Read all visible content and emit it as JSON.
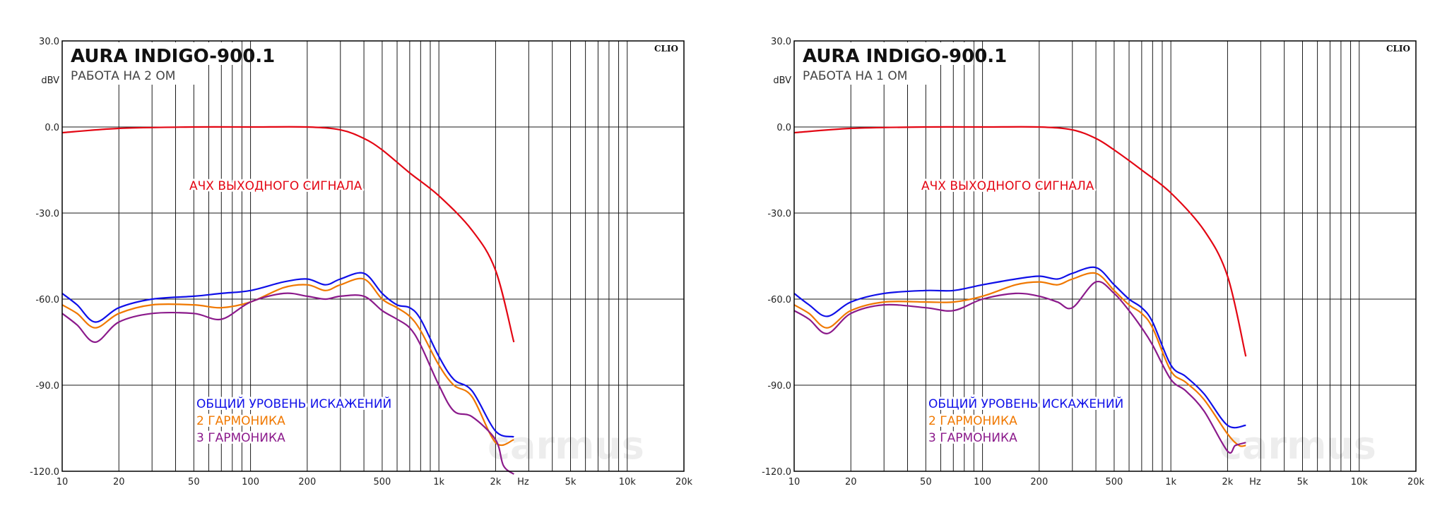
{
  "chart_data": [
    {
      "type": "line",
      "title": "AURA INDIGO-900.1",
      "subtitle": "РАБОТА НА 2 ОМ",
      "brand": "CLIO",
      "watermark": "carmus",
      "ylabel": "dBV",
      "xlabel": "Hz",
      "x_scale": "log",
      "xlim": [
        10,
        20000
      ],
      "ylim": [
        -120,
        30
      ],
      "x_ticks": [
        10,
        20,
        50,
        100,
        200,
        500,
        1000,
        2000,
        5000,
        10000,
        20000
      ],
      "x_tick_labels": [
        "10",
        "20",
        "50",
        "100",
        "200",
        "500",
        "1k",
        "2k",
        "5k",
        "10k",
        "20k"
      ],
      "y_ticks": [
        30,
        0,
        -30,
        -60,
        -90,
        -120
      ],
      "y_tick_labels": [
        "30.0",
        "0.0",
        "-30.0",
        "-60.0",
        "-90.0",
        "-120.0"
      ],
      "grid": true,
      "annotations": [
        {
          "text": "АЧХ ВЫХОДНОГО СИГНАЛА",
          "color": "#e30613"
        },
        {
          "text": "ОБЩИЙ УРОВЕНЬ ИСКАЖЕНИЙ",
          "color": "#1010e8"
        },
        {
          "text": "2 ГАРМОНИКА",
          "color": "#f07800"
        },
        {
          "text": "3 ГАРМОНИКА",
          "color": "#8b1a8b"
        }
      ],
      "series": [
        {
          "color": "#e30613",
          "x": [
            10,
            20,
            50,
            100,
            200,
            300,
            400,
            500,
            700,
            1000,
            1500,
            2000,
            2500
          ],
          "y": [
            -2,
            -0.5,
            0,
            0,
            0,
            -1,
            -4,
            -8,
            -16,
            -24,
            -36,
            -50,
            -75
          ]
        },
        {
          "color": "#1010e8",
          "x": [
            10,
            12,
            15,
            20,
            30,
            50,
            70,
            100,
            150,
            200,
            250,
            300,
            400,
            500,
            600,
            700,
            800,
            1000,
            1200,
            1500,
            2000,
            2500
          ],
          "y": [
            -58,
            -62,
            -68,
            -63,
            -60,
            -59,
            -58,
            -57,
            -54,
            -53,
            -55,
            -53,
            -51,
            -58,
            -62,
            -63,
            -67,
            -80,
            -88,
            -92,
            -106,
            -108
          ]
        },
        {
          "color": "#f07800",
          "x": [
            10,
            12,
            15,
            20,
            30,
            50,
            70,
            100,
            150,
            200,
            250,
            300,
            400,
            500,
            600,
            700,
            800,
            1000,
            1200,
            1500,
            2000,
            2500
          ],
          "y": [
            -62,
            -65,
            -70,
            -65,
            -62,
            -62,
            -63,
            -61,
            -56,
            -55,
            -57,
            -55,
            -53,
            -60,
            -63,
            -66,
            -71,
            -83,
            -90,
            -94,
            -110,
            -109
          ]
        },
        {
          "color": "#8b1a8b",
          "x": [
            10,
            12,
            15,
            20,
            30,
            50,
            70,
            100,
            150,
            200,
            250,
            300,
            400,
            500,
            600,
            700,
            800,
            1000,
            1200,
            1500,
            2000,
            2200,
            2500
          ],
          "y": [
            -65,
            -69,
            -75,
            -68,
            -65,
            -65,
            -67,
            -61,
            -58,
            -59,
            -60,
            -59,
            -59,
            -64,
            -67,
            -70,
            -76,
            -90,
            -99,
            -101,
            -109,
            -118,
            -121
          ]
        }
      ]
    },
    {
      "type": "line",
      "title": "AURA INDIGO-900.1",
      "subtitle": "РАБОТА НА 1 ОМ",
      "brand": "CLIO",
      "watermark": "carmus",
      "ylabel": "dBV",
      "xlabel": "Hz",
      "x_scale": "log",
      "xlim": [
        10,
        20000
      ],
      "ylim": [
        -120,
        30
      ],
      "x_ticks": [
        10,
        20,
        50,
        100,
        200,
        500,
        1000,
        2000,
        5000,
        10000,
        20000
      ],
      "x_tick_labels": [
        "10",
        "20",
        "50",
        "100",
        "200",
        "500",
        "1k",
        "2k",
        "5k",
        "10k",
        "20k"
      ],
      "y_ticks": [
        30,
        0,
        -30,
        -60,
        -90,
        -120
      ],
      "y_tick_labels": [
        "30.0",
        "0.0",
        "-30.0",
        "-60.0",
        "-90.0",
        "-120.0"
      ],
      "grid": true,
      "annotations": [
        {
          "text": "АЧХ ВЫХОДНОГО СИГНАЛА",
          "color": "#e30613"
        },
        {
          "text": "ОБЩИЙ УРОВЕНЬ ИСКАЖЕНИЙ",
          "color": "#1010e8"
        },
        {
          "text": "2 ГАРМОНИКА",
          "color": "#f07800"
        },
        {
          "text": "3 ГАРМОНИКА",
          "color": "#8b1a8b"
        }
      ],
      "series": [
        {
          "color": "#e30613",
          "x": [
            10,
            20,
            50,
            100,
            200,
            300,
            400,
            500,
            700,
            1000,
            1500,
            2000,
            2500
          ],
          "y": [
            -2,
            -0.5,
            0,
            0,
            0,
            -1,
            -4,
            -8,
            -15,
            -23,
            -36,
            -52,
            -80
          ]
        },
        {
          "color": "#1010e8",
          "x": [
            10,
            12,
            15,
            20,
            30,
            50,
            70,
            100,
            150,
            200,
            250,
            300,
            400,
            500,
            600,
            700,
            800,
            1000,
            1200,
            1500,
            2000,
            2500
          ],
          "y": [
            -58,
            -62,
            -66,
            -61,
            -58,
            -57,
            -57,
            -55,
            -53,
            -52,
            -53,
            -51,
            -49,
            -55,
            -60,
            -63,
            -68,
            -83,
            -87,
            -93,
            -104,
            -104
          ]
        },
        {
          "color": "#f07800",
          "x": [
            10,
            12,
            15,
            20,
            30,
            50,
            70,
            100,
            150,
            200,
            250,
            300,
            400,
            500,
            600,
            700,
            800,
            1000,
            1200,
            1500,
            2000,
            2300,
            2500
          ],
          "y": [
            -62,
            -65,
            -70,
            -64,
            -61,
            -61,
            -61,
            -59,
            -55,
            -54,
            -55,
            -53,
            -51,
            -57,
            -62,
            -65,
            -70,
            -85,
            -89,
            -95,
            -107,
            -111,
            -111
          ]
        },
        {
          "color": "#8b1a8b",
          "x": [
            10,
            12,
            15,
            20,
            30,
            50,
            70,
            100,
            150,
            200,
            250,
            300,
            400,
            500,
            600,
            700,
            800,
            1000,
            1200,
            1500,
            2000,
            2200,
            2500
          ],
          "y": [
            -64,
            -67,
            -72,
            -65,
            -62,
            -63,
            -64,
            -60,
            -58,
            -59,
            -61,
            -63,
            -54,
            -58,
            -64,
            -70,
            -76,
            -88,
            -92,
            -99,
            -113,
            -111,
            -110
          ]
        }
      ]
    }
  ]
}
